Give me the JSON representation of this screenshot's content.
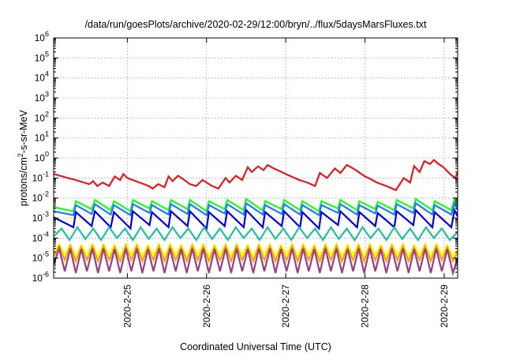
{
  "chart_data": {
    "type": "line",
    "title": "/data/run/goesPlots/archive/2020-02-29/12:00/bryn/../flux/5daysMarsFluxes.txt",
    "xlabel": "Coordinated Universal Time (UTC)",
    "ylabel": {
      "prefix": "protons/cm",
      "sup": "2",
      "suffix": "-s-sr-MeV"
    },
    "yscale": "log",
    "ylim": [
      1e-06,
      1000000.0
    ],
    "xlim": [
      0,
      5.1
    ],
    "x_ticks": [
      {
        "x": 0.93,
        "label": "2020-2-25"
      },
      {
        "x": 1.93,
        "label": "2020-2-26"
      },
      {
        "x": 2.93,
        "label": "2020-2-27"
      },
      {
        "x": 3.93,
        "label": "2020-2-28"
      },
      {
        "x": 4.93,
        "label": "2020-2-29"
      }
    ],
    "y_ticks": [
      {
        "exp": -6
      },
      {
        "exp": -5
      },
      {
        "exp": -4
      },
      {
        "exp": -3
      },
      {
        "exp": -2
      },
      {
        "exp": -1
      },
      {
        "exp": 0
      },
      {
        "exp": 1
      },
      {
        "exp": 2
      },
      {
        "exp": 3
      },
      {
        "exp": 4
      },
      {
        "exp": 5
      },
      {
        "exp": 6
      }
    ],
    "tick_base": "10",
    "grid": true,
    "legend": "none",
    "series": [
      {
        "color": "#e41a1c",
        "x": [
          0,
          0.08,
          0.18,
          0.28,
          0.38,
          0.45,
          0.5,
          0.55,
          0.62,
          0.7,
          0.77,
          0.84,
          0.88,
          0.93,
          1.0,
          1.08,
          1.14,
          1.2,
          1.25,
          1.32,
          1.4,
          1.45,
          1.5,
          1.57,
          1.65,
          1.72,
          1.8,
          1.88,
          1.93,
          2.0,
          2.08,
          2.17,
          2.22,
          2.3,
          2.38,
          2.45,
          2.5,
          2.58,
          2.65,
          2.7,
          2.78,
          2.86,
          2.93,
          3.02,
          3.1,
          3.2,
          3.3,
          3.36,
          3.45,
          3.55,
          3.62,
          3.7,
          3.78,
          3.85,
          3.93,
          4.0,
          4.08,
          4.2,
          4.32,
          4.42,
          4.5,
          4.55,
          4.62,
          4.68,
          4.75,
          4.8,
          4.86,
          4.92,
          4.97,
          5.02,
          5.07,
          5.1
        ],
        "y": [
          0.16,
          0.13,
          0.1,
          0.08,
          0.06,
          0.05,
          0.07,
          0.04,
          0.06,
          0.04,
          0.12,
          0.08,
          0.16,
          0.1,
          0.08,
          0.06,
          0.05,
          0.04,
          0.03,
          0.05,
          0.035,
          0.12,
          0.07,
          0.13,
          0.08,
          0.05,
          0.04,
          0.08,
          0.06,
          0.04,
          0.03,
          0.1,
          0.06,
          0.13,
          0.08,
          0.35,
          0.2,
          0.38,
          0.25,
          0.45,
          0.3,
          0.22,
          0.16,
          0.11,
          0.08,
          0.06,
          0.04,
          0.18,
          0.1,
          0.3,
          0.18,
          0.45,
          0.3,
          0.2,
          0.12,
          0.09,
          0.06,
          0.04,
          0.025,
          0.1,
          0.06,
          0.4,
          0.2,
          0.7,
          0.5,
          0.8,
          0.5,
          0.35,
          0.22,
          0.14,
          0.1,
          0.2
        ]
      },
      {
        "color": "#1aff1a",
        "x": [
          0,
          0.25,
          0.28,
          0.48,
          0.52,
          0.72,
          0.76,
          0.97,
          1.0,
          1.21,
          1.24,
          1.45,
          1.48,
          1.69,
          1.72,
          1.93,
          1.96,
          2.16,
          2.19,
          2.4,
          2.43,
          2.64,
          2.67,
          2.88,
          2.91,
          3.11,
          3.14,
          3.35,
          3.38,
          3.59,
          3.62,
          3.83,
          3.86,
          4.06,
          4.09,
          4.3,
          4.33,
          4.54,
          4.57,
          4.78,
          4.81,
          5.02,
          5.06,
          5.1
        ],
        "y": [
          0.0035,
          0.0022,
          0.007,
          0.0028,
          0.008,
          0.0025,
          0.007,
          0.0022,
          0.008,
          0.003,
          0.007,
          0.0025,
          0.008,
          0.0028,
          0.008,
          0.0022,
          0.007,
          0.0028,
          0.008,
          0.0025,
          0.009,
          0.0024,
          0.007,
          0.0028,
          0.008,
          0.0025,
          0.007,
          0.0022,
          0.007,
          0.003,
          0.008,
          0.0025,
          0.007,
          0.0028,
          0.0065,
          0.0025,
          0.008,
          0.003,
          0.009,
          0.0025,
          0.007,
          0.0025,
          0.009,
          0.004
        ]
      },
      {
        "color": "#1e7cff",
        "x": [
          0,
          0.25,
          0.28,
          0.48,
          0.52,
          0.72,
          0.76,
          0.97,
          1.0,
          1.21,
          1.24,
          1.45,
          1.48,
          1.69,
          1.72,
          1.93,
          1.96,
          2.16,
          2.19,
          2.4,
          2.43,
          2.64,
          2.67,
          2.88,
          2.91,
          3.11,
          3.14,
          3.35,
          3.38,
          3.59,
          3.62,
          3.83,
          3.86,
          4.06,
          4.09,
          4.3,
          4.33,
          4.54,
          4.57,
          4.78,
          4.81,
          5.02,
          5.06,
          5.1
        ],
        "y": [
          0.0022,
          0.0014,
          0.0045,
          0.0016,
          0.005,
          0.0015,
          0.0045,
          0.0014,
          0.005,
          0.0018,
          0.0045,
          0.0015,
          0.005,
          0.0016,
          0.005,
          0.0014,
          0.0045,
          0.0017,
          0.005,
          0.0015,
          0.0055,
          0.0015,
          0.0045,
          0.0016,
          0.005,
          0.0015,
          0.0045,
          0.0014,
          0.0045,
          0.0018,
          0.005,
          0.0015,
          0.0045,
          0.0017,
          0.0042,
          0.0015,
          0.005,
          0.0018,
          0.0055,
          0.0015,
          0.0045,
          0.0015,
          0.0055,
          0.0025
        ]
      },
      {
        "color": "#0000e0",
        "x": [
          0,
          0.25,
          0.28,
          0.48,
          0.52,
          0.72,
          0.76,
          0.97,
          1.0,
          1.21,
          1.24,
          1.45,
          1.48,
          1.69,
          1.72,
          1.93,
          1.96,
          2.16,
          2.19,
          2.4,
          2.43,
          2.64,
          2.67,
          2.88,
          2.91,
          3.11,
          3.14,
          3.35,
          3.38,
          3.59,
          3.62,
          3.83,
          3.86,
          4.06,
          4.09,
          4.3,
          4.33,
          4.54,
          4.57,
          4.78,
          4.81,
          5.02,
          5.06,
          5.1
        ],
        "y": [
          0.0011,
          0.00035,
          0.002,
          0.0004,
          0.0022,
          0.00035,
          0.002,
          0.0003,
          0.0022,
          0.00045,
          0.002,
          0.00035,
          0.0022,
          0.0004,
          0.0022,
          0.0003,
          0.002,
          0.0004,
          0.0022,
          0.00035,
          0.0025,
          0.00035,
          0.002,
          0.0004,
          0.0022,
          0.00035,
          0.002,
          0.0003,
          0.002,
          0.00045,
          0.0022,
          0.00035,
          0.002,
          0.0004,
          0.0018,
          0.00035,
          0.0022,
          0.00045,
          0.0025,
          0.00035,
          0.002,
          0.00035,
          0.0025,
          0.0012
        ]
      },
      {
        "color": "#20c0a0",
        "x": [
          0,
          0.1,
          0.2,
          0.3,
          0.4,
          0.5,
          0.6,
          0.7,
          0.8,
          0.9,
          1.0,
          1.1,
          1.2,
          1.3,
          1.4,
          1.5,
          1.6,
          1.7,
          1.8,
          1.9,
          2.0,
          2.1,
          2.2,
          2.3,
          2.4,
          2.5,
          2.6,
          2.7,
          2.8,
          2.9,
          3.0,
          3.1,
          3.2,
          3.3,
          3.4,
          3.5,
          3.6,
          3.7,
          3.8,
          3.9,
          4.0,
          4.1,
          4.2,
          4.3,
          4.4,
          4.5,
          4.6,
          4.7,
          4.8,
          4.9,
          5.0,
          5.1
        ],
        "y": [
          0.00012,
          0.0003,
          8e-05,
          0.00035,
          9e-05,
          0.0003,
          8e-05,
          0.00035,
          0.0001,
          0.0003,
          8e-05,
          0.00035,
          9e-05,
          0.0003,
          8e-05,
          0.00035,
          0.0001,
          0.0003,
          8e-05,
          0.00035,
          9e-05,
          0.0003,
          8e-05,
          0.00035,
          0.0001,
          0.0003,
          8e-05,
          0.00035,
          9e-05,
          0.0003,
          8e-05,
          0.00035,
          0.0001,
          0.0003,
          8e-05,
          0.00035,
          9e-05,
          0.0003,
          8e-05,
          0.00035,
          0.0001,
          0.0003,
          8e-05,
          0.00035,
          9e-05,
          0.0003,
          8e-05,
          0.00035,
          0.0001,
          0.0003,
          8e-05,
          0.0002
        ]
      },
      {
        "color": "#ffff00",
        "x": [
          0,
          0.07,
          0.14,
          0.21,
          0.28,
          0.35,
          0.42,
          0.49,
          0.56,
          0.63,
          0.7,
          0.77,
          0.84,
          0.91,
          0.98,
          1.05,
          1.12,
          1.19,
          1.26,
          1.33,
          1.4,
          1.47,
          1.54,
          1.61,
          1.68,
          1.75,
          1.82,
          1.89,
          1.96,
          2.03,
          2.1,
          2.17,
          2.24,
          2.31,
          2.38,
          2.45,
          2.52,
          2.59,
          2.66,
          2.73,
          2.8,
          2.87,
          2.94,
          3.01,
          3.08,
          3.15,
          3.22,
          3.29,
          3.36,
          3.43,
          3.5,
          3.57,
          3.64,
          3.71,
          3.78,
          3.85,
          3.92,
          3.99,
          4.06,
          4.13,
          4.2,
          4.27,
          4.34,
          4.41,
          4.48,
          4.55,
          4.62,
          4.69,
          4.76,
          4.83,
          4.9,
          4.97,
          5.04,
          5.1
        ],
        "y": [
          2e-05,
          5e-05,
          1.5e-05,
          5e-05,
          1.2e-05,
          4.5e-05,
          1.5e-05,
          5e-05,
          1.2e-05,
          5e-05,
          1.5e-05,
          4.5e-05,
          1.2e-05,
          5e-05,
          1.5e-05,
          5e-05,
          1.2e-05,
          4.5e-05,
          1.5e-05,
          5e-05,
          1.2e-05,
          5e-05,
          1.5e-05,
          4.5e-05,
          1.2e-05,
          5e-05,
          1.5e-05,
          5e-05,
          1.2e-05,
          4.5e-05,
          1.5e-05,
          5e-05,
          1.2e-05,
          5e-05,
          1.5e-05,
          4.5e-05,
          1.2e-05,
          5e-05,
          1.5e-05,
          5e-05,
          1.2e-05,
          4.5e-05,
          1.5e-05,
          5e-05,
          1.2e-05,
          5e-05,
          1.5e-05,
          4.5e-05,
          1.2e-05,
          5e-05,
          1.5e-05,
          5e-05,
          1.2e-05,
          4.5e-05,
          1.5e-05,
          5e-05,
          1.2e-05,
          5e-05,
          1.5e-05,
          4.5e-05,
          1.2e-05,
          5e-05,
          1.5e-05,
          5e-05,
          1.2e-05,
          4.5e-05,
          1.5e-05,
          5e-05,
          1.2e-05,
          5e-05,
          1.5e-05,
          4.5e-05,
          1.2e-05,
          3e-05
        ]
      },
      {
        "color": "#f0a020",
        "x": [
          0,
          0.07,
          0.14,
          0.21,
          0.28,
          0.35,
          0.42,
          0.49,
          0.56,
          0.63,
          0.7,
          0.77,
          0.84,
          0.91,
          0.98,
          1.05,
          1.12,
          1.19,
          1.26,
          1.33,
          1.4,
          1.47,
          1.54,
          1.61,
          1.68,
          1.75,
          1.82,
          1.89,
          1.96,
          2.03,
          2.1,
          2.17,
          2.24,
          2.31,
          2.38,
          2.45,
          2.52,
          2.59,
          2.66,
          2.73,
          2.8,
          2.87,
          2.94,
          3.01,
          3.08,
          3.15,
          3.22,
          3.29,
          3.36,
          3.43,
          3.5,
          3.57,
          3.64,
          3.71,
          3.78,
          3.85,
          3.92,
          3.99,
          4.06,
          4.13,
          4.2,
          4.27,
          4.34,
          4.41,
          4.48,
          4.55,
          4.62,
          4.69,
          4.76,
          4.83,
          4.9,
          4.97,
          5.04,
          5.1
        ],
        "y": [
          1.2e-05,
          4e-05,
          8e-06,
          4e-05,
          7e-06,
          3.5e-05,
          8e-06,
          4e-05,
          7e-06,
          4e-05,
          8e-06,
          3.5e-05,
          7e-06,
          4e-05,
          8e-06,
          4e-05,
          7e-06,
          3.5e-05,
          8e-06,
          4e-05,
          7e-06,
          4e-05,
          8e-06,
          3.5e-05,
          7e-06,
          4e-05,
          8e-06,
          4e-05,
          7e-06,
          3.5e-05,
          8e-06,
          4e-05,
          7e-06,
          4e-05,
          8e-06,
          3.5e-05,
          7e-06,
          4e-05,
          8e-06,
          4e-05,
          7e-06,
          3.5e-05,
          8e-06,
          4e-05,
          7e-06,
          4e-05,
          8e-06,
          3.5e-05,
          7e-06,
          4e-05,
          8e-06,
          4e-05,
          7e-06,
          3.5e-05,
          8e-06,
          4e-05,
          7e-06,
          4e-05,
          8e-06,
          3.5e-05,
          7e-06,
          4e-05,
          8e-06,
          4e-05,
          7e-06,
          3.5e-05,
          8e-06,
          4e-05,
          7e-06,
          4e-05,
          8e-06,
          3.5e-05,
          7e-06,
          2e-05
        ]
      },
      {
        "color": "#9a3f86",
        "x": [
          0,
          0.07,
          0.14,
          0.21,
          0.28,
          0.35,
          0.42,
          0.49,
          0.56,
          0.63,
          0.7,
          0.77,
          0.84,
          0.91,
          0.98,
          1.05,
          1.12,
          1.19,
          1.26,
          1.33,
          1.4,
          1.47,
          1.54,
          1.61,
          1.68,
          1.75,
          1.82,
          1.89,
          1.96,
          2.03,
          2.1,
          2.17,
          2.24,
          2.31,
          2.38,
          2.45,
          2.52,
          2.59,
          2.66,
          2.73,
          2.8,
          2.87,
          2.94,
          3.01,
          3.08,
          3.15,
          3.22,
          3.29,
          3.36,
          3.43,
          3.5,
          3.57,
          3.64,
          3.71,
          3.78,
          3.85,
          3.92,
          3.99,
          4.06,
          4.13,
          4.2,
          4.27,
          4.34,
          4.41,
          4.48,
          4.55,
          4.62,
          4.69,
          4.76,
          4.83,
          4.9,
          4.97,
          5.04,
          5.1
        ],
        "y": [
          5e-06,
          3e-05,
          2.2e-06,
          3e-05,
          1.8e-06,
          2.8e-05,
          2.2e-06,
          3e-05,
          1.8e-06,
          3e-05,
          2.2e-06,
          2.8e-05,
          1.8e-06,
          3e-05,
          2.2e-06,
          3e-05,
          1.8e-06,
          2.8e-05,
          2.2e-06,
          3e-05,
          1.8e-06,
          3e-05,
          2.2e-06,
          2.8e-05,
          1.8e-06,
          3e-05,
          2.2e-06,
          3e-05,
          1.8e-06,
          2.8e-05,
          2.2e-06,
          3e-05,
          1.8e-06,
          3e-05,
          2.2e-06,
          2.8e-05,
          1.8e-06,
          3e-05,
          2.2e-06,
          3e-05,
          1.8e-06,
          2.8e-05,
          2.2e-06,
          3e-05,
          1.8e-06,
          3e-05,
          2.2e-06,
          2.8e-05,
          1.8e-06,
          3e-05,
          2.2e-06,
          3e-05,
          1.8e-06,
          2.8e-05,
          2.2e-06,
          3e-05,
          1.8e-06,
          3e-05,
          2.2e-06,
          2.8e-05,
          1.8e-06,
          3e-05,
          2.2e-06,
          3e-05,
          1.8e-06,
          2.8e-05,
          2.2e-06,
          3e-05,
          1.8e-06,
          3e-05,
          2.2e-06,
          2.8e-05,
          1.8e-06,
          1e-05
        ]
      }
    ]
  }
}
